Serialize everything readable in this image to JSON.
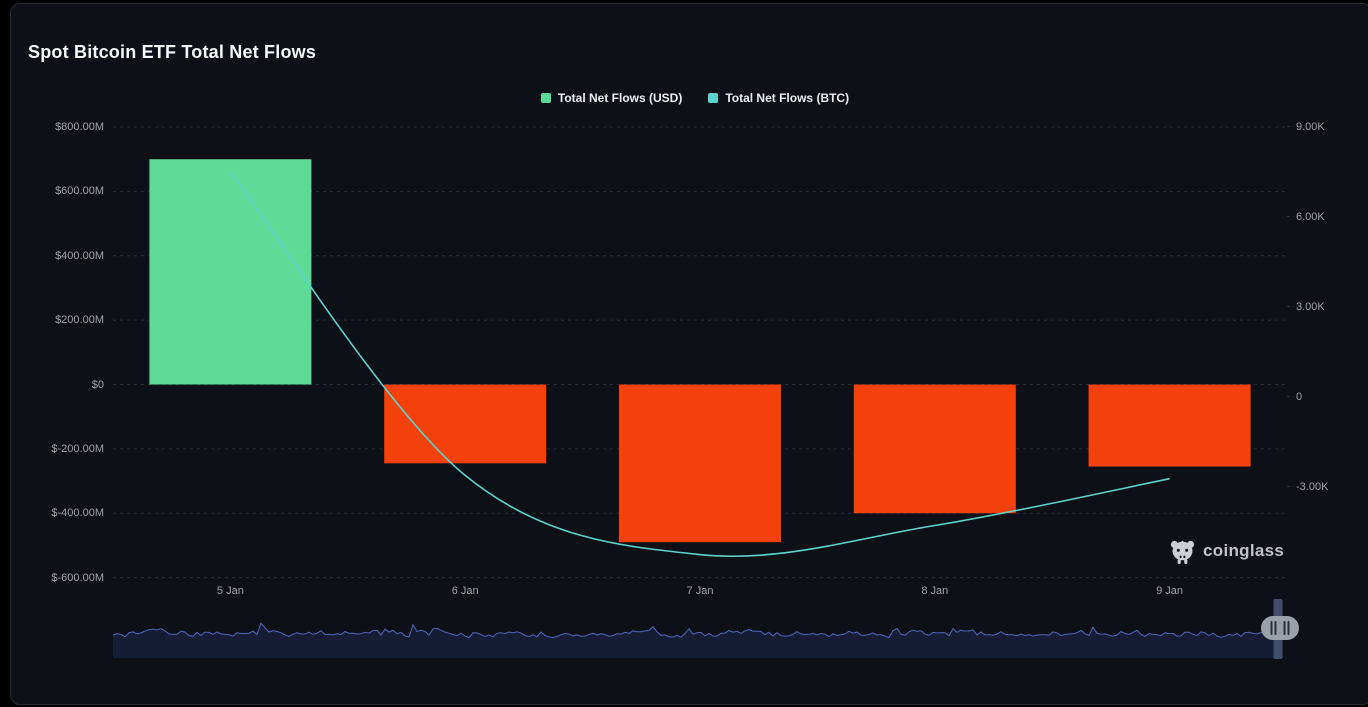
{
  "page": {
    "title": "Spot Bitcoin ETF Total Net Flows"
  },
  "legend": {
    "items": [
      {
        "label": "Total Net Flows (USD)",
        "color": "#5CDA96"
      },
      {
        "label": "Total Net Flows (BTC)",
        "color": "#5FD2CE"
      }
    ]
  },
  "chart_data": {
    "type": "bar",
    "categories": [
      "5 Jan",
      "6 Jan",
      "7 Jan",
      "8 Jan",
      "9 Jan"
    ],
    "series": [
      {
        "name": "Total Net Flows (USD)",
        "type": "bar",
        "axis": "left",
        "unit": "USD millions",
        "values": [
          700,
          -245,
          -490,
          -400,
          -255
        ],
        "positive_color": "#5CDA96",
        "negative_color": "#F4410B"
      },
      {
        "name": "Total Net Flows (BTC)",
        "type": "line",
        "axis": "right",
        "unit": "BTC",
        "values": [
          7500,
          -2630,
          -5270,
          -4300,
          -2740
        ],
        "color": "#5FD2CE"
      }
    ],
    "title": "Spot Bitcoin ETF Total Net Flows",
    "xlabel": "",
    "ylabel_left": "USD",
    "ylabel_right": "BTC",
    "left_axis": {
      "tick_labels": [
        "$800.00M",
        "$600.00M",
        "$400.00M",
        "$200.00M",
        "$0",
        "$-200.00M",
        "$-400.00M",
        "$-600.00M"
      ],
      "tick_values": [
        800,
        600,
        400,
        200,
        0,
        -200,
        -400,
        -600
      ],
      "ylim": [
        -600,
        800
      ]
    },
    "right_axis": {
      "tick_labels": [
        "9.00K",
        "6.00K",
        "3.00K",
        "0",
        "-3.00K"
      ],
      "tick_values": [
        9000,
        6000,
        3000,
        0,
        -3000
      ],
      "ylim": [
        -6050,
        9000
      ]
    },
    "grid": "dashed horizontal",
    "legend_position": "top-center"
  },
  "watermark": {
    "label": "coinglass"
  },
  "icons": {
    "watermark_logo": "coinglass-bull",
    "navigator_grip": "drag-grip"
  },
  "colors": {
    "page_bg": "#000000",
    "card_bg": "#0d1016",
    "card_border": "#252a33",
    "grid": "rgba(154,163,178,0.20)",
    "axis_text": "#9ea4ab",
    "navigator_line": "#4d68bd",
    "navigator_fill": "#141d33",
    "navigator_handle_bar": "#3e4e6b",
    "navigator_grip": "#9aa0a8",
    "navigator_grip_ticks": "#2e3237"
  }
}
